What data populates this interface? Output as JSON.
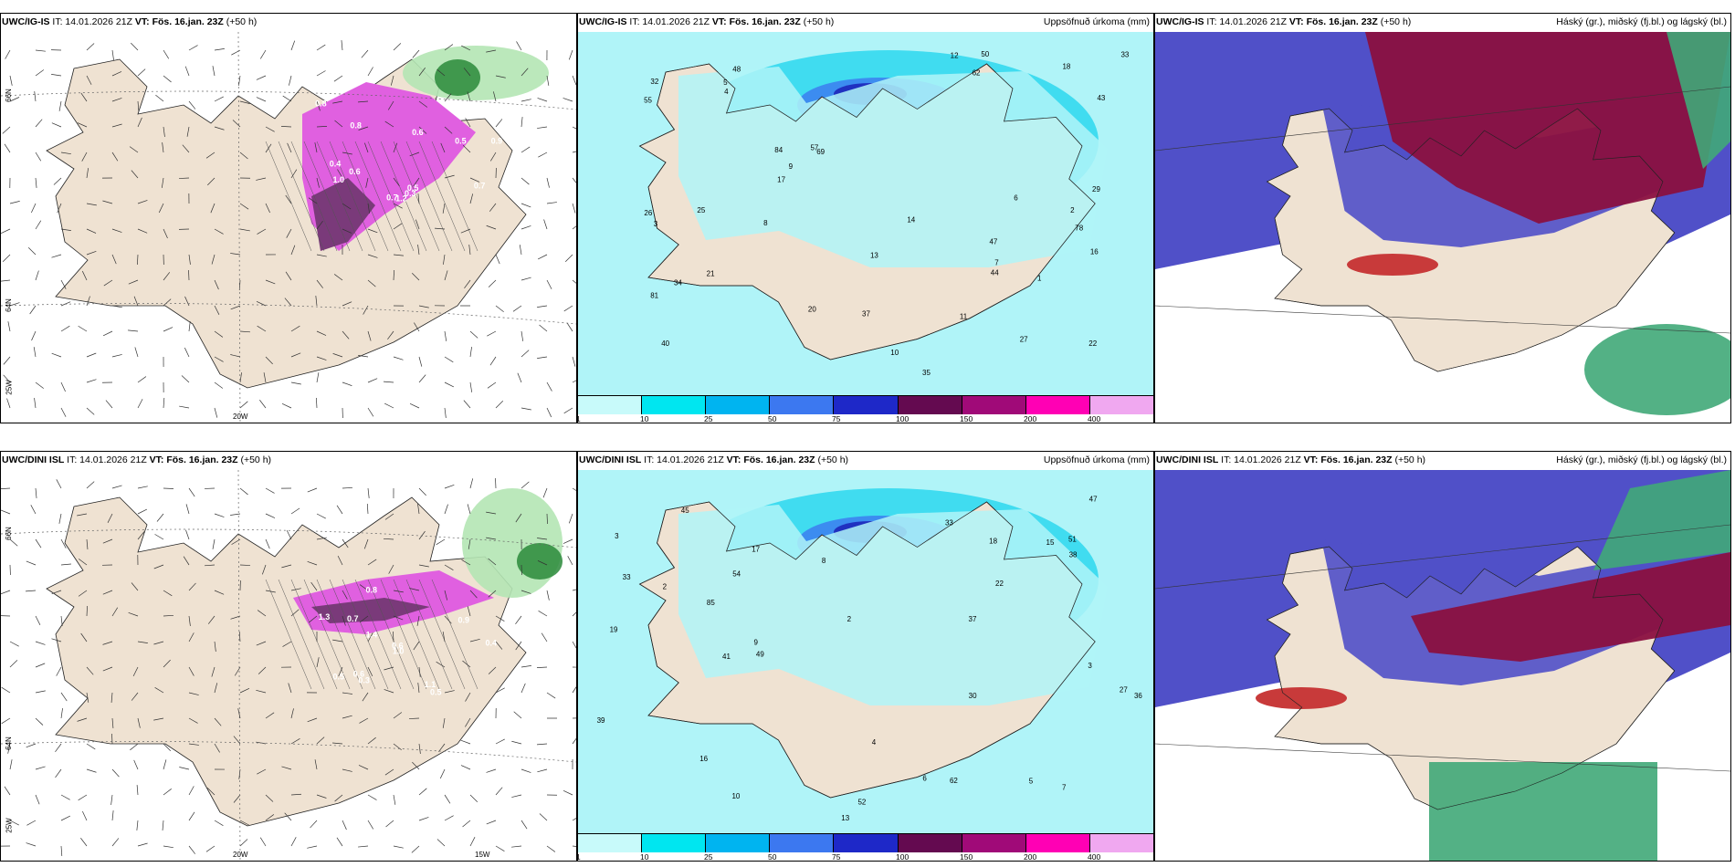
{
  "rows": [
    {
      "panels": [
        {
          "model": "UWC/IG-IS",
          "it": "IT: 14.01.2026 21Z",
          "vt_label": "VT:",
          "vt": "Fös. 16.jan. 23Z",
          "lead": "(+50 h)",
          "title": "",
          "kind": "snow"
        },
        {
          "model": "UWC/IG-IS",
          "it": "IT: 14.01.2026 21Z",
          "vt_label": "VT:",
          "vt": "Fös. 16.jan. 23Z",
          "lead": "(+50 h)",
          "title": "Uppsöfnuð úrkoma (mm)",
          "kind": "precip"
        },
        {
          "model": "UWC/IG-IS",
          "it": "IT: 14.01.2026 21Z",
          "vt_label": "VT:",
          "vt": "Fös. 16.jan. 23Z",
          "lead": "(+50 h)",
          "title": "Háský (gr.), miðský (fj.bl.) og lágský (bl.)",
          "kind": "cloud"
        }
      ]
    },
    {
      "panels": [
        {
          "model": "UWC/DINI ISL",
          "it": "IT: 14.01.2026 21Z",
          "vt_label": "VT:",
          "vt": "Fös. 16.jan. 23Z",
          "lead": "(+50 h)",
          "title": "",
          "kind": "snow"
        },
        {
          "model": "UWC/DINI ISL",
          "it": "IT: 14.01.2026 21Z",
          "vt_label": "VT:",
          "vt": "Fös. 16.jan. 23Z",
          "lead": "(+50 h)",
          "title": "Uppsöfnuð úrkoma (mm)",
          "kind": "precip"
        },
        {
          "model": "UWC/DINI ISL",
          "it": "IT: 14.01.2026 21Z",
          "vt_label": "VT:",
          "vt": "Fös. 16.jan. 23Z",
          "lead": "(+50 h)",
          "title": "Háský (gr.), miðský (fj.bl.) og lágský (bl.)",
          "kind": "cloud"
        }
      ]
    }
  ],
  "axes": {
    "lat_66": "66N",
    "lat_64": "64N",
    "lon_25": "25W",
    "lon_20": "20W",
    "lon_15": "15W"
  },
  "colorbar": {
    "labels": [
      "1",
      "10",
      "25",
      "50",
      "75",
      "100",
      "150",
      "200",
      "400"
    ],
    "colors": [
      "#c8fafa",
      "#00e6f0",
      "#00b4f0",
      "#3c78f0",
      "#1e28c8",
      "#640a50",
      "#a00a78",
      "#ff00b4",
      "#f0a8f0"
    ]
  },
  "colors": {
    "land": "#efe2d2",
    "sea": "#ffffff",
    "precip_light": "#b0f4f8",
    "precip_mid": "#40dcf0",
    "precip_blue": "#3c8cf0",
    "precip_dark": "#2030c0",
    "snow_pink": "#e060e0",
    "snow_purple": "#7a3a7a",
    "green_light": "#b4e6b4",
    "green_dark": "#2a8a3a",
    "cloud_blue": "#5050c8",
    "cloud_dark_red": "#8a1040",
    "cloud_green": "#40a878",
    "cloud_red": "#c83a3a"
  },
  "precip_labels": {
    "top": [
      "47",
      "78",
      "40",
      "48",
      "69",
      "27",
      "81",
      "62",
      "84",
      "35",
      "55",
      "26",
      "32",
      "22",
      "20",
      "29",
      "13",
      "14",
      "57",
      "21",
      "33",
      "18",
      "17",
      "16",
      "12",
      "5",
      "7",
      "3",
      "4",
      "6",
      "10",
      "11",
      "9",
      "8",
      "2",
      "1",
      "44",
      "25",
      "37",
      "34",
      "43",
      "50"
    ],
    "bottom": [
      "33",
      "54",
      "37",
      "52",
      "15",
      "13",
      "30",
      "49",
      "51",
      "36",
      "27",
      "17",
      "22",
      "16",
      "19",
      "10",
      "9",
      "8",
      "7",
      "6",
      "5",
      "3",
      "2",
      "4",
      "18",
      "85",
      "38",
      "33",
      "45",
      "41",
      "39",
      "62",
      "47",
      "2",
      "3"
    ]
  },
  "snow_labels": {
    "top": [
      "0.7",
      "0.5",
      "0.6",
      "0.8",
      "0.9",
      "1.0",
      "0.3",
      "0.4",
      "0.5",
      "0.8",
      "0.6",
      "0.7",
      "1.2"
    ],
    "bottom": [
      "0.5",
      "0.8",
      "0.6",
      "0.7",
      "0.9",
      "1.1",
      "0.4",
      "1.4",
      "1.0",
      "0.3",
      "0.5",
      "1.3",
      "0.6"
    ]
  }
}
